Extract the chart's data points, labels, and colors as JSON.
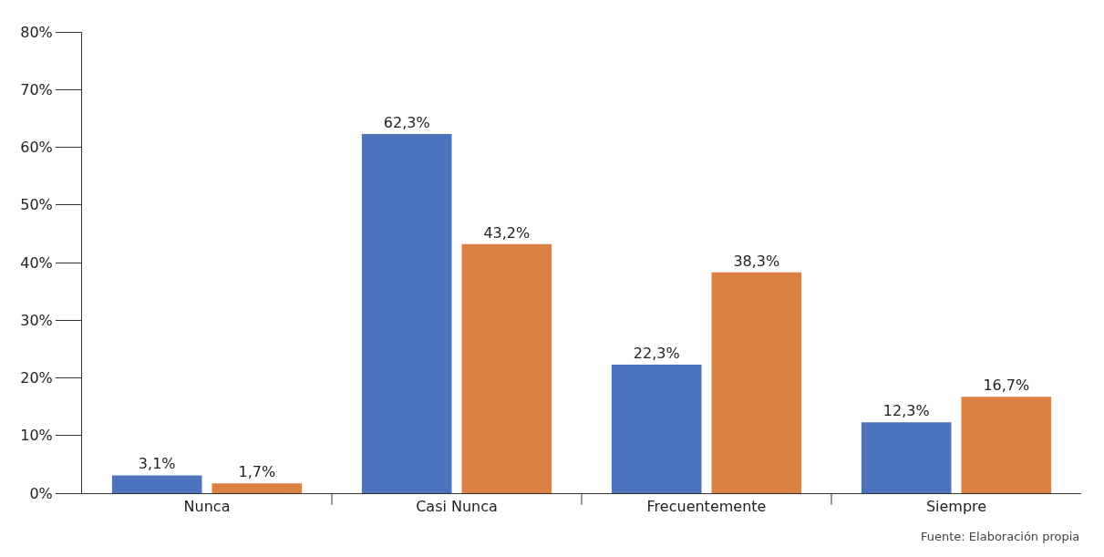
{
  "chart_data": {
    "type": "bar",
    "categories": [
      "Nunca",
      "Casi Nunca",
      "Frecuentemente",
      "Siempre"
    ],
    "series": [
      {
        "color": "#4e73be",
        "values": [
          3.1,
          62.3,
          22.3,
          12.3
        ],
        "value_labels": [
          "3,1%",
          "62,3%",
          "22,3%",
          "12,3%"
        ]
      },
      {
        "color": "#dc8043",
        "values": [
          1.7,
          43.2,
          38.3,
          16.7
        ],
        "value_labels": [
          "1,7%",
          "43,2%",
          "38,3%",
          "16,7%"
        ]
      }
    ],
    "ylim": [
      0,
      80
    ],
    "yticks": [
      {
        "value": 0,
        "label": "0%"
      },
      {
        "value": 10,
        "label": "10%"
      },
      {
        "value": 20,
        "label": "20%"
      },
      {
        "value": 30,
        "label": "30%"
      },
      {
        "value": 40,
        "label": "40%"
      },
      {
        "value": 50,
        "label": "50%"
      },
      {
        "value": 60,
        "label": "60%"
      },
      {
        "value": 70,
        "label": "70%"
      },
      {
        "value": 80,
        "label": "80%"
      }
    ],
    "annotations": [
      "Fuente: Elaboración propia"
    ]
  }
}
